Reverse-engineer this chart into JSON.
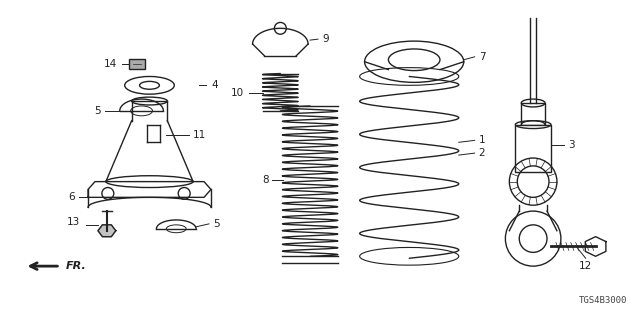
{
  "bg_color": "#ffffff",
  "line_color": "#222222",
  "diagram_code": "TGS4B3000",
  "figsize": [
    6.4,
    3.2
  ],
  "dpi": 100
}
